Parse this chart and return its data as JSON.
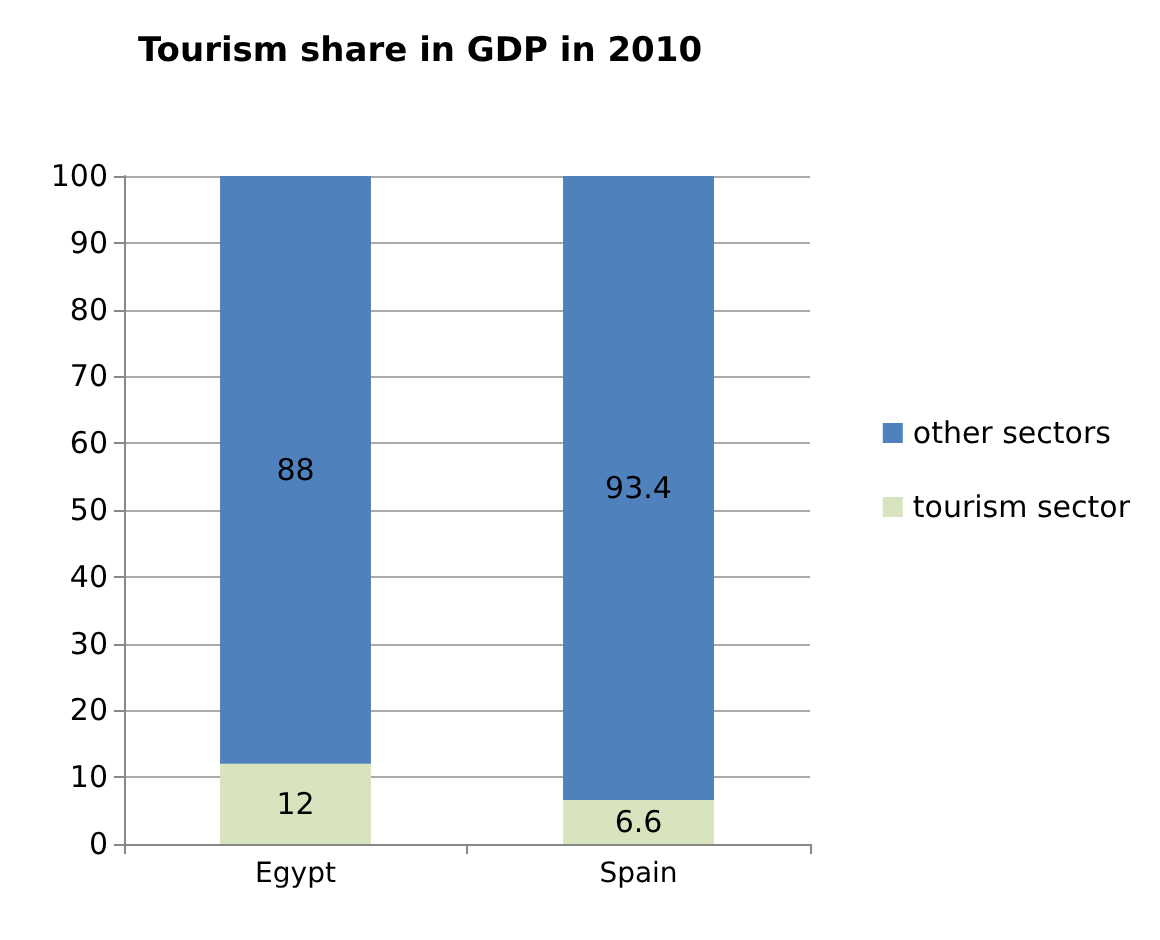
{
  "chart_data": {
    "type": "bar",
    "title": "Tourism share in GDP in 2010",
    "categories": [
      "Egypt",
      "Spain"
    ],
    "stacked": true,
    "series": [
      {
        "name": "tourism sector",
        "color": "#d7e4bd",
        "values": [
          12,
          6.6
        ]
      },
      {
        "name": "other sectors",
        "color": "#4f81bd",
        "values": [
          88,
          93.4
        ]
      }
    ],
    "ylim": [
      0,
      100
    ],
    "yticks": [
      0,
      10,
      20,
      30,
      40,
      50,
      60,
      70,
      80,
      90,
      100
    ],
    "grid": "y",
    "legend": "right",
    "data_labels": true
  }
}
